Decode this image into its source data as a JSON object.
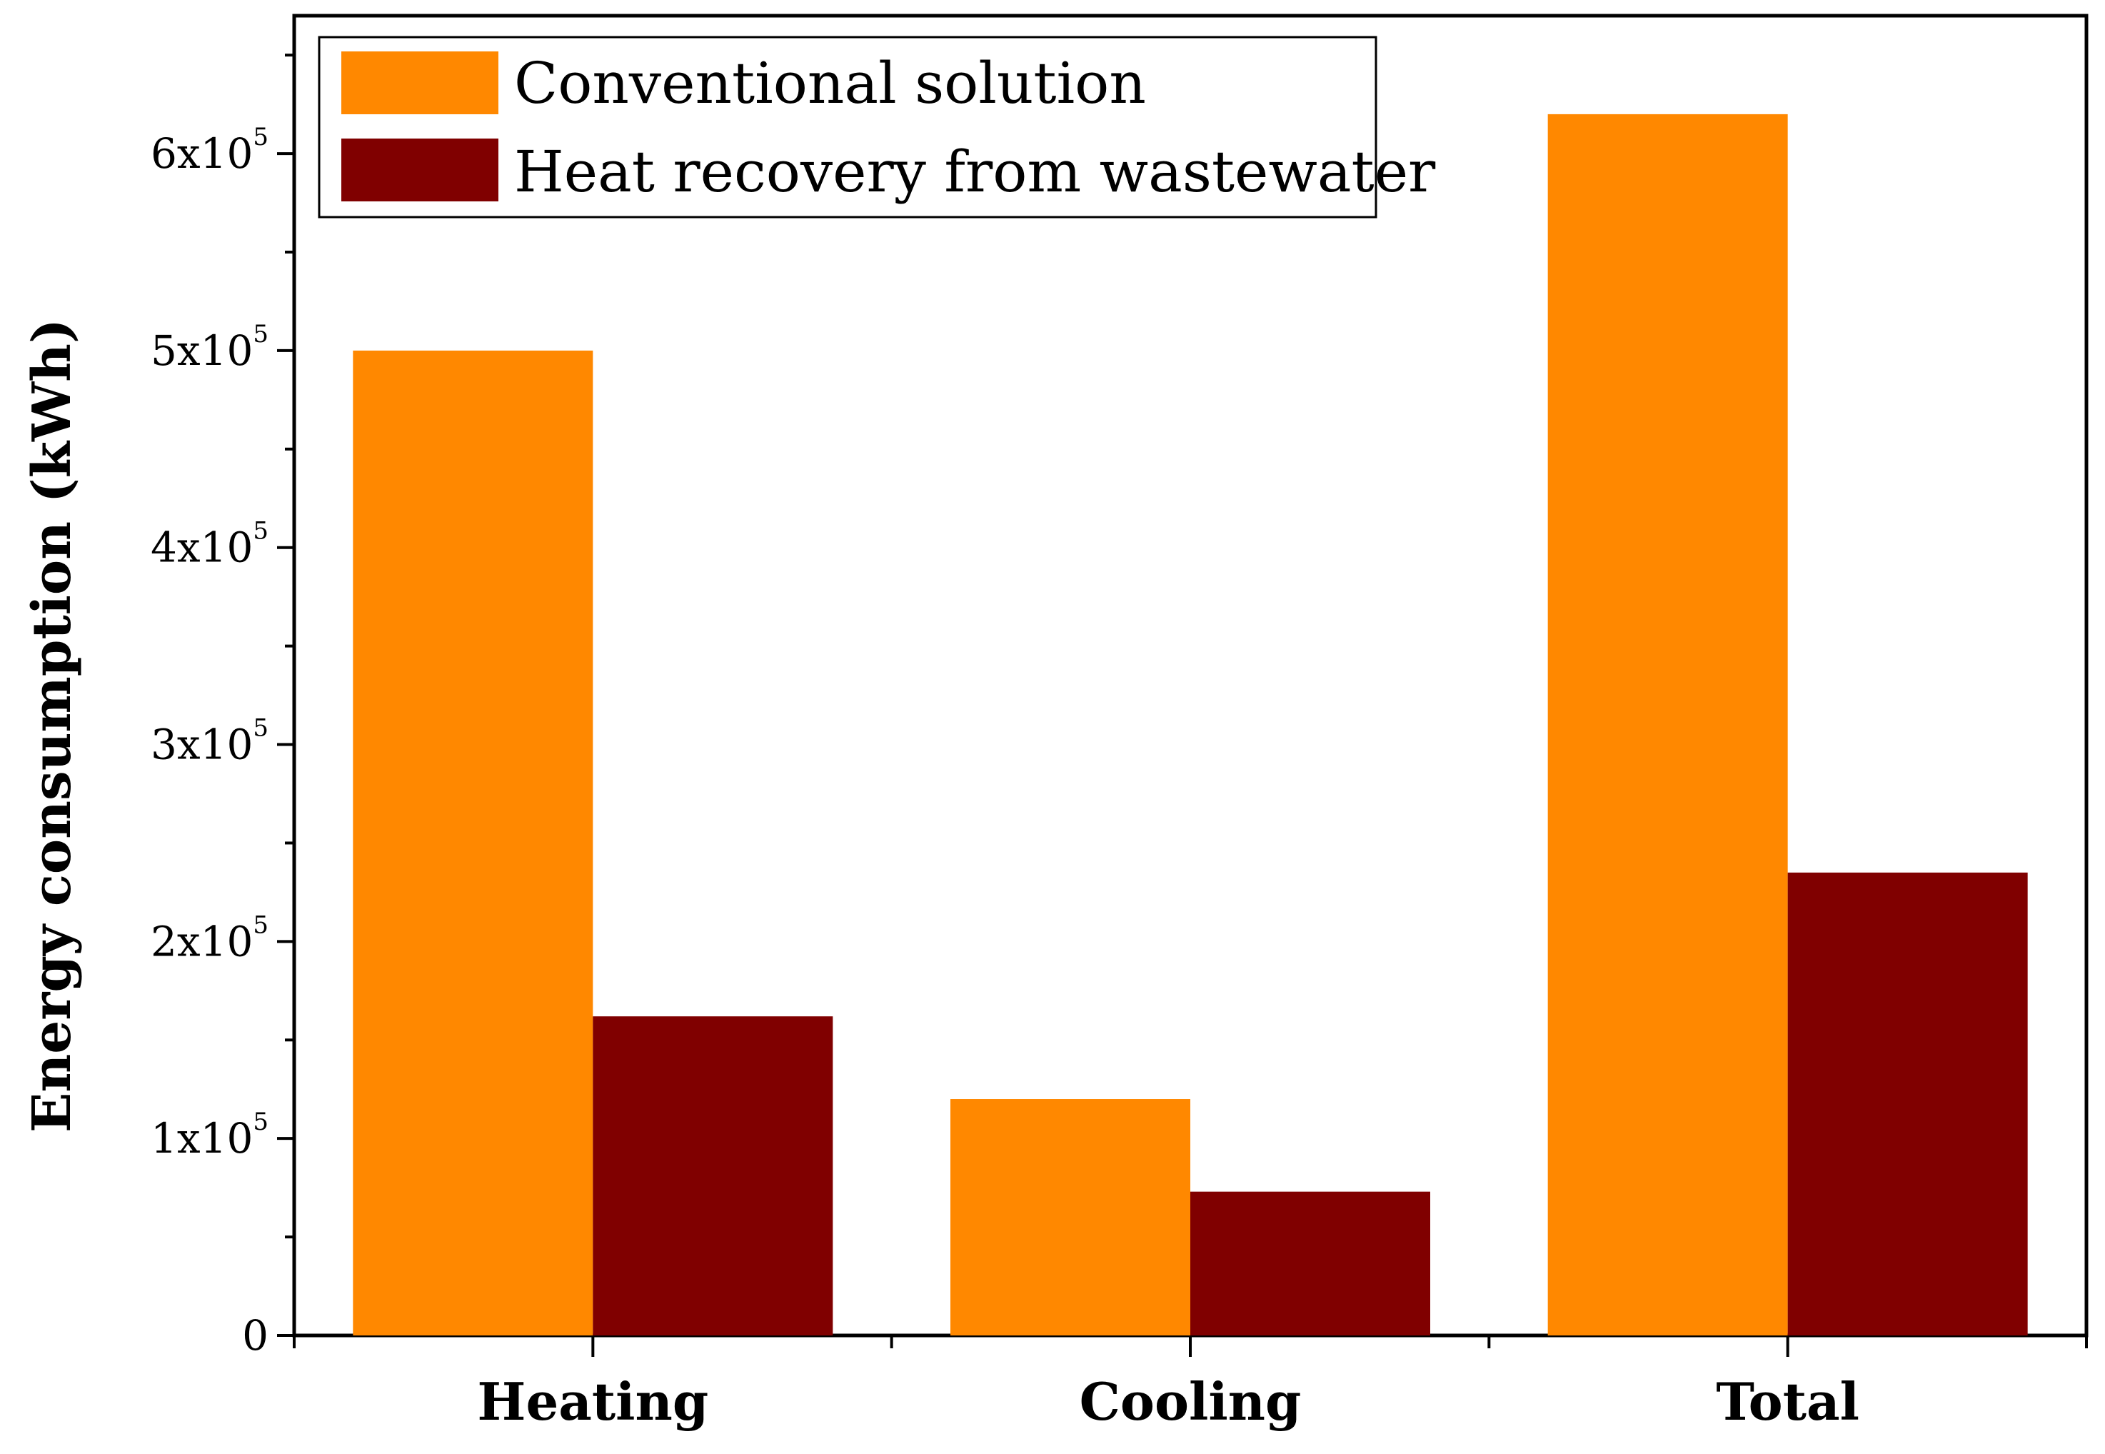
{
  "chart_data": {
    "type": "bar",
    "title": "",
    "xlabel": "",
    "ylabel": "Energy consumption (kWh)",
    "ylim": [
      0,
      670000
    ],
    "categories": [
      "Heating",
      "Cooling",
      "Total"
    ],
    "series": [
      {
        "name": "Conventional solution",
        "color": "#ff8800",
        "values": [
          500000,
          120000,
          620000
        ]
      },
      {
        "name": "Heat recovery from wastewater",
        "color": "#800000",
        "values": [
          162000,
          73000,
          235000
        ]
      }
    ],
    "y_ticks": [
      {
        "value": 0,
        "mantissa": "0",
        "exponent": ""
      },
      {
        "value": 100000,
        "mantissa": "1x10",
        "exponent": "5"
      },
      {
        "value": 200000,
        "mantissa": "2x10",
        "exponent": "5"
      },
      {
        "value": 300000,
        "mantissa": "3x10",
        "exponent": "5"
      },
      {
        "value": 400000,
        "mantissa": "4x10",
        "exponent": "5"
      },
      {
        "value": 500000,
        "mantissa": "5x10",
        "exponent": "5"
      },
      {
        "value": 600000,
        "mantissa": "6x10",
        "exponent": "5"
      }
    ],
    "legend_position": "top-left",
    "grid": false
  }
}
